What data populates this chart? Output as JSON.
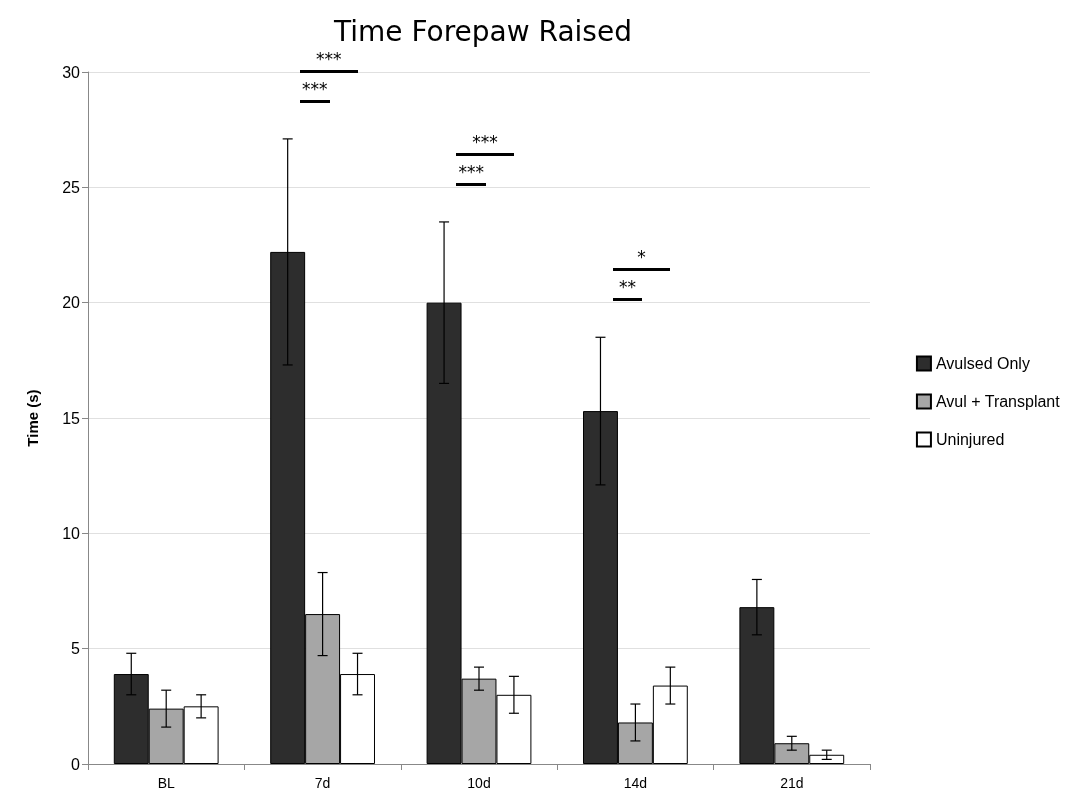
{
  "chart_data": {
    "type": "bar",
    "title": "Time Forepaw Raised",
    "ylabel": "Time (s)",
    "categories": [
      "BL",
      "7d",
      "10d",
      "14d",
      "21d"
    ],
    "series": [
      {
        "name": "Avulsed Only",
        "color": "#2d2d2d",
        "values": [
          3.9,
          22.2,
          20.0,
          15.3,
          6.8
        ],
        "errors": [
          0.9,
          4.9,
          3.5,
          3.2,
          1.2
        ]
      },
      {
        "name": "Avul + Transplant",
        "color": "#a6a6a6",
        "values": [
          2.4,
          6.5,
          3.7,
          1.8,
          0.9
        ],
        "errors": [
          0.8,
          1.8,
          0.5,
          0.8,
          0.3
        ]
      },
      {
        "name": "Uninjured",
        "color": "#ffffff",
        "values": [
          2.5,
          3.9,
          3.0,
          3.4,
          0.4
        ],
        "errors": [
          0.5,
          0.9,
          0.8,
          0.8,
          0.2
        ]
      }
    ],
    "ylim": [
      0,
      30
    ],
    "yticks": [
      0,
      5,
      10,
      15,
      20,
      25,
      30
    ],
    "grid": "y",
    "legend": "right",
    "annotations": [
      "***",
      "***",
      "***",
      "***",
      "*",
      "**"
    ]
  }
}
